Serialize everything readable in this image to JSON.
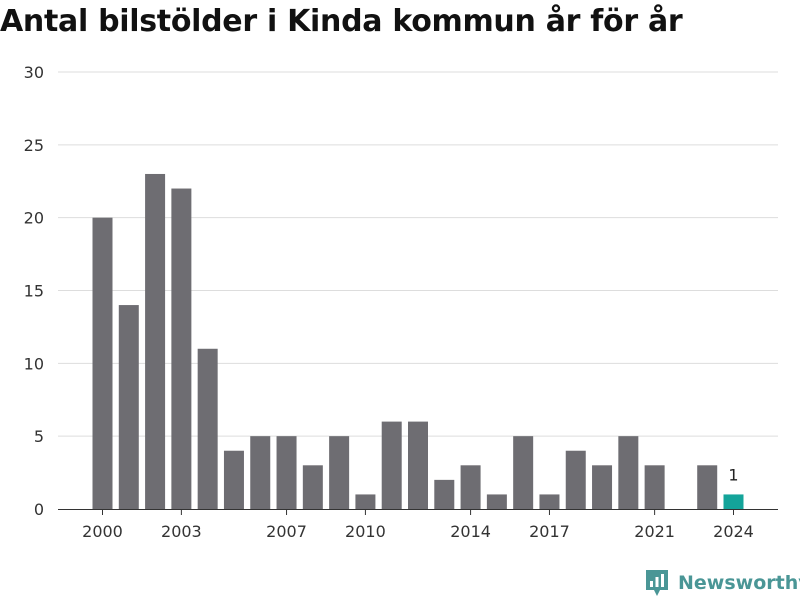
{
  "title": "Antal bilstölder i Kinda kommun år för år",
  "brand": {
    "name": "Newsworthy",
    "icon": "newsworthy-logo-icon"
  },
  "colors": {
    "bar": "#6e6d72",
    "highlight": "#14a49a",
    "grid": "#dddddd",
    "axis": "#333333",
    "text": "#333333",
    "brand": "#4a9696"
  },
  "chart_data": {
    "type": "bar",
    "title": "Antal bilstölder i Kinda kommun år för år",
    "xlabel": "",
    "ylabel": "",
    "ylim": [
      0,
      30
    ],
    "yticks": [
      0,
      5,
      10,
      15,
      20,
      25,
      30
    ],
    "grid": true,
    "categories": [
      2000,
      2001,
      2002,
      2003,
      2004,
      2005,
      2006,
      2007,
      2008,
      2009,
      2010,
      2011,
      2012,
      2013,
      2014,
      2015,
      2016,
      2017,
      2018,
      2019,
      2020,
      2021,
      2022,
      2023,
      2024
    ],
    "values": [
      20,
      14,
      23,
      22,
      11,
      4,
      5,
      5,
      3,
      5,
      1,
      6,
      6,
      2,
      3,
      1,
      5,
      1,
      4,
      3,
      5,
      3,
      0,
      3,
      1
    ],
    "xtick_labels": [
      2000,
      2003,
      2007,
      2010,
      2014,
      2017,
      2021,
      2024
    ],
    "highlight": {
      "category": 2024,
      "value": 1,
      "label": "1"
    }
  }
}
